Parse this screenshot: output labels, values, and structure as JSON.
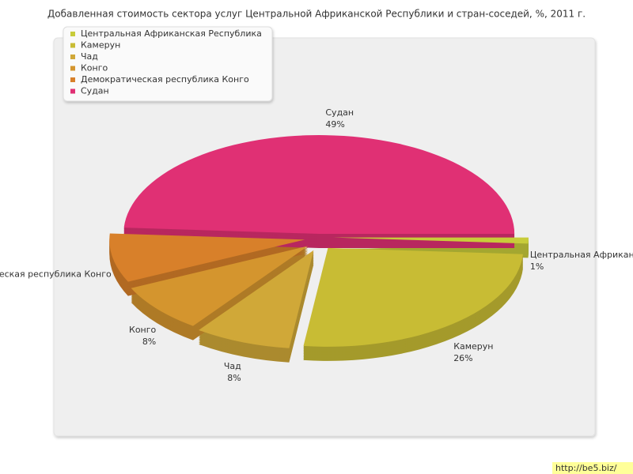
{
  "chart_data": {
    "type": "pie",
    "title": "Добавленная стоимость сектора услуг Центральной Африканской Республики и стран-соседей, %, 2011 г.",
    "categories": [
      "Центральная Африканская Республика",
      "Камерун",
      "Чад",
      "Конго",
      "Демократическая республика Конго",
      "Судан"
    ],
    "values": [
      1,
      26,
      8,
      8,
      8,
      49
    ],
    "value_labels": [
      "1%",
      "26%",
      "8%",
      "8%",
      null,
      "49%"
    ],
    "colors": [
      "#c8cc3a",
      "#c8bc34",
      "#d0a838",
      "#d4952e",
      "#d8802a",
      "#e03074"
    ],
    "legend": "top-left",
    "watermark": "http://be5.biz/"
  }
}
